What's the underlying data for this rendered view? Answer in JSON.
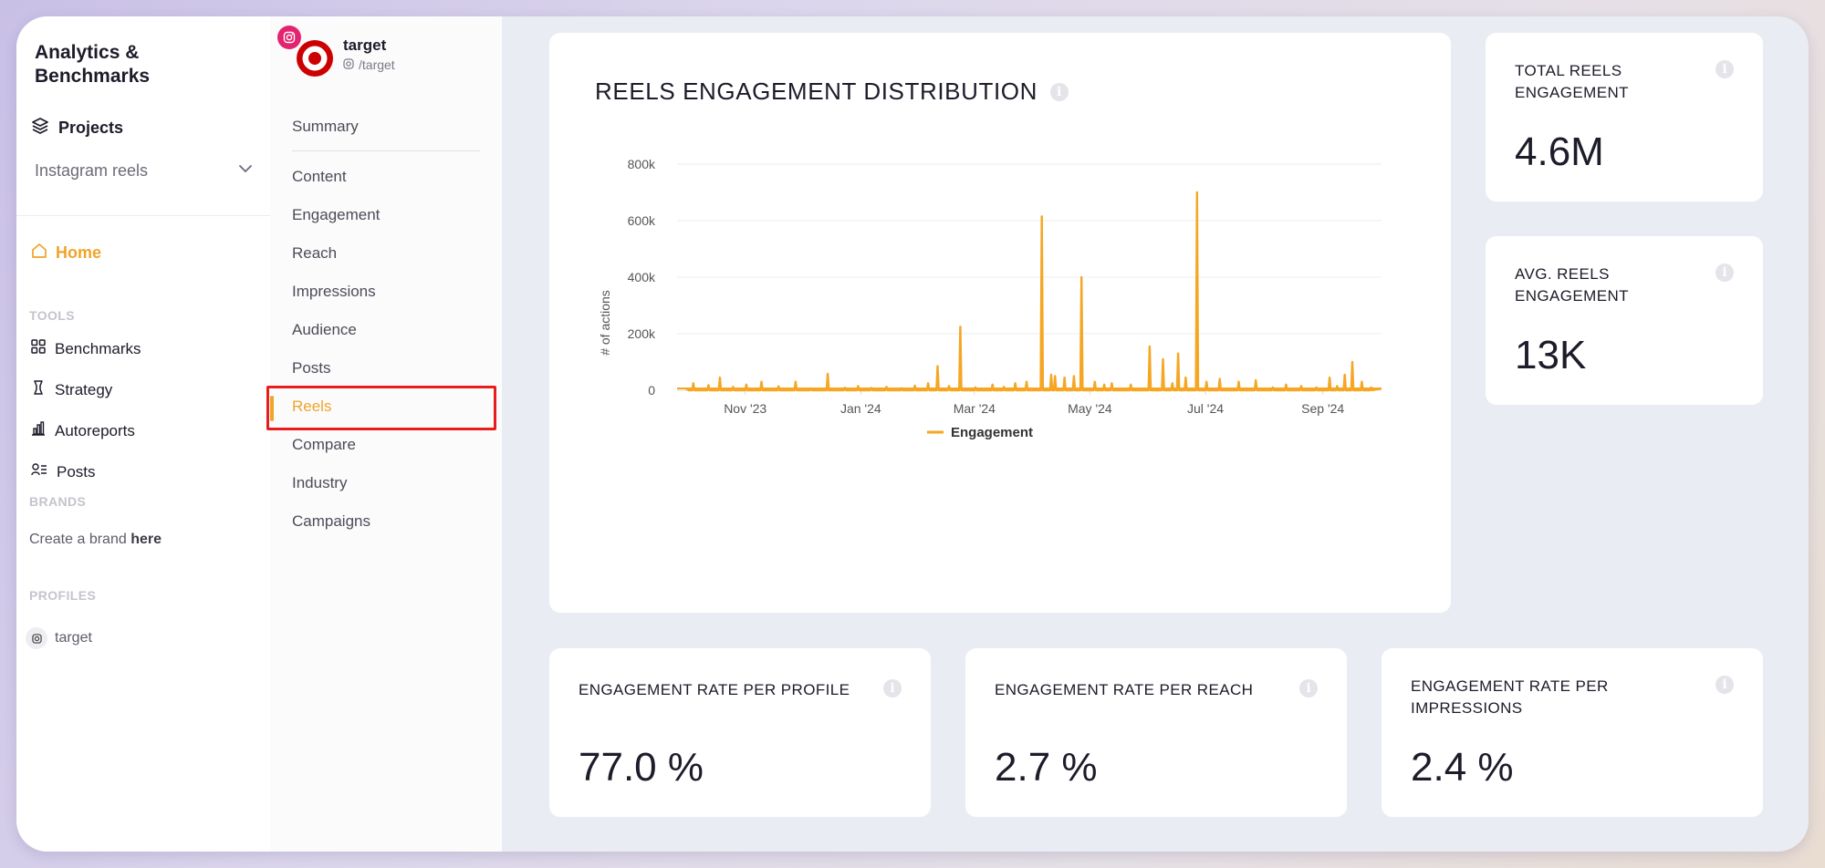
{
  "app": {
    "title": "Analytics & Benchmarks"
  },
  "sidebar": {
    "projects_label": "Projects",
    "project_select": "Instagram reels",
    "home_label": "Home",
    "tools_heading": "TOOLS",
    "tools": [
      "Benchmarks",
      "Strategy",
      "Autoreports",
      "Posts"
    ],
    "brands_heading": "BRANDS",
    "brand_prefix": "Create a brand",
    "brand_link": "here",
    "profiles_heading": "PROFILES",
    "profiles": [
      "target"
    ]
  },
  "profile": {
    "name": "target",
    "handle": "/target"
  },
  "subnav": {
    "summary": "Summary",
    "items": [
      "Content",
      "Engagement",
      "Reach",
      "Impressions",
      "Audience",
      "Posts",
      "Reels",
      "Compare",
      "Industry",
      "Campaigns"
    ],
    "active": "Reels"
  },
  "chart": {
    "title": "REELS ENGAGEMENT DISTRIBUTION"
  },
  "chart_data": {
    "type": "line",
    "title": "REELS ENGAGEMENT DISTRIBUTION",
    "xlabel": "",
    "ylabel": "# of actions",
    "ylim": [
      0,
      800000
    ],
    "yticks": [
      "0",
      "200k",
      "400k",
      "600k",
      "800k"
    ],
    "xticks": [
      "Nov '23",
      "Jan '24",
      "Mar '24",
      "May '24",
      "Jul '24",
      "Sep '24"
    ],
    "legend": "bottom-center",
    "grid": true,
    "color": "#f5a623",
    "series": [
      {
        "name": "Engagement",
        "x": [
          "2023-10-01",
          "2023-10-04",
          "2023-10-12",
          "2023-10-18",
          "2023-10-25",
          "2023-11-01",
          "2023-11-09",
          "2023-11-18",
          "2023-11-27",
          "2023-12-05",
          "2023-12-14",
          "2023-12-23",
          "2023-12-30",
          "2024-01-06",
          "2024-01-14",
          "2024-01-22",
          "2024-01-29",
          "2024-02-05",
          "2024-02-10",
          "2024-02-16",
          "2024-02-22",
          "2024-03-01",
          "2024-03-10",
          "2024-03-16",
          "2024-03-22",
          "2024-03-28",
          "2024-04-05",
          "2024-04-10",
          "2024-04-12",
          "2024-04-17",
          "2024-04-22",
          "2024-04-26",
          "2024-05-03",
          "2024-05-08",
          "2024-05-12",
          "2024-05-22",
          "2024-06-01",
          "2024-06-08",
          "2024-06-13",
          "2024-06-16",
          "2024-06-20",
          "2024-06-26",
          "2024-07-01",
          "2024-07-08",
          "2024-07-18",
          "2024-07-27",
          "2024-08-05",
          "2024-08-12",
          "2024-08-20",
          "2024-08-28",
          "2024-09-04",
          "2024-09-08",
          "2024-09-12",
          "2024-09-16",
          "2024-09-21",
          "2024-09-26"
        ],
        "y": [
          5000,
          25000,
          18000,
          45000,
          12000,
          20000,
          30000,
          14000,
          30000,
          6000,
          58000,
          9000,
          15000,
          8000,
          12000,
          7000,
          16000,
          25000,
          85000,
          15000,
          225000,
          10000,
          20000,
          12000,
          25000,
          30000,
          615000,
          55000,
          50000,
          45000,
          50000,
          400000,
          30000,
          20000,
          25000,
          20000,
          155000,
          110000,
          25000,
          130000,
          45000,
          700000,
          30000,
          40000,
          30000,
          35000,
          10000,
          20000,
          15000,
          10000,
          45000,
          15000,
          55000,
          100000,
          30000,
          10000
        ]
      }
    ]
  },
  "stats": {
    "total": {
      "title": "TOTAL REELS ENGAGEMENT",
      "value": "4.6M"
    },
    "avg": {
      "title": "AVG. REELS ENGAGEMENT",
      "value": "13K"
    },
    "er_profile": {
      "title": "ENGAGEMENT RATE PER PROFILE",
      "value": "77.0 %"
    },
    "er_reach": {
      "title": "ENGAGEMENT RATE PER REACH",
      "value": "2.7 %"
    },
    "er_impressions": {
      "title": "ENGAGEMENT RATE PER IMPRESSIONS",
      "value": "2.4 %"
    }
  },
  "colors": {
    "accent": "#f0a42a",
    "line": "#f5a623",
    "instagram": "#e3246e",
    "target_red": "#cc0000",
    "highlight": "#e81c1c"
  }
}
